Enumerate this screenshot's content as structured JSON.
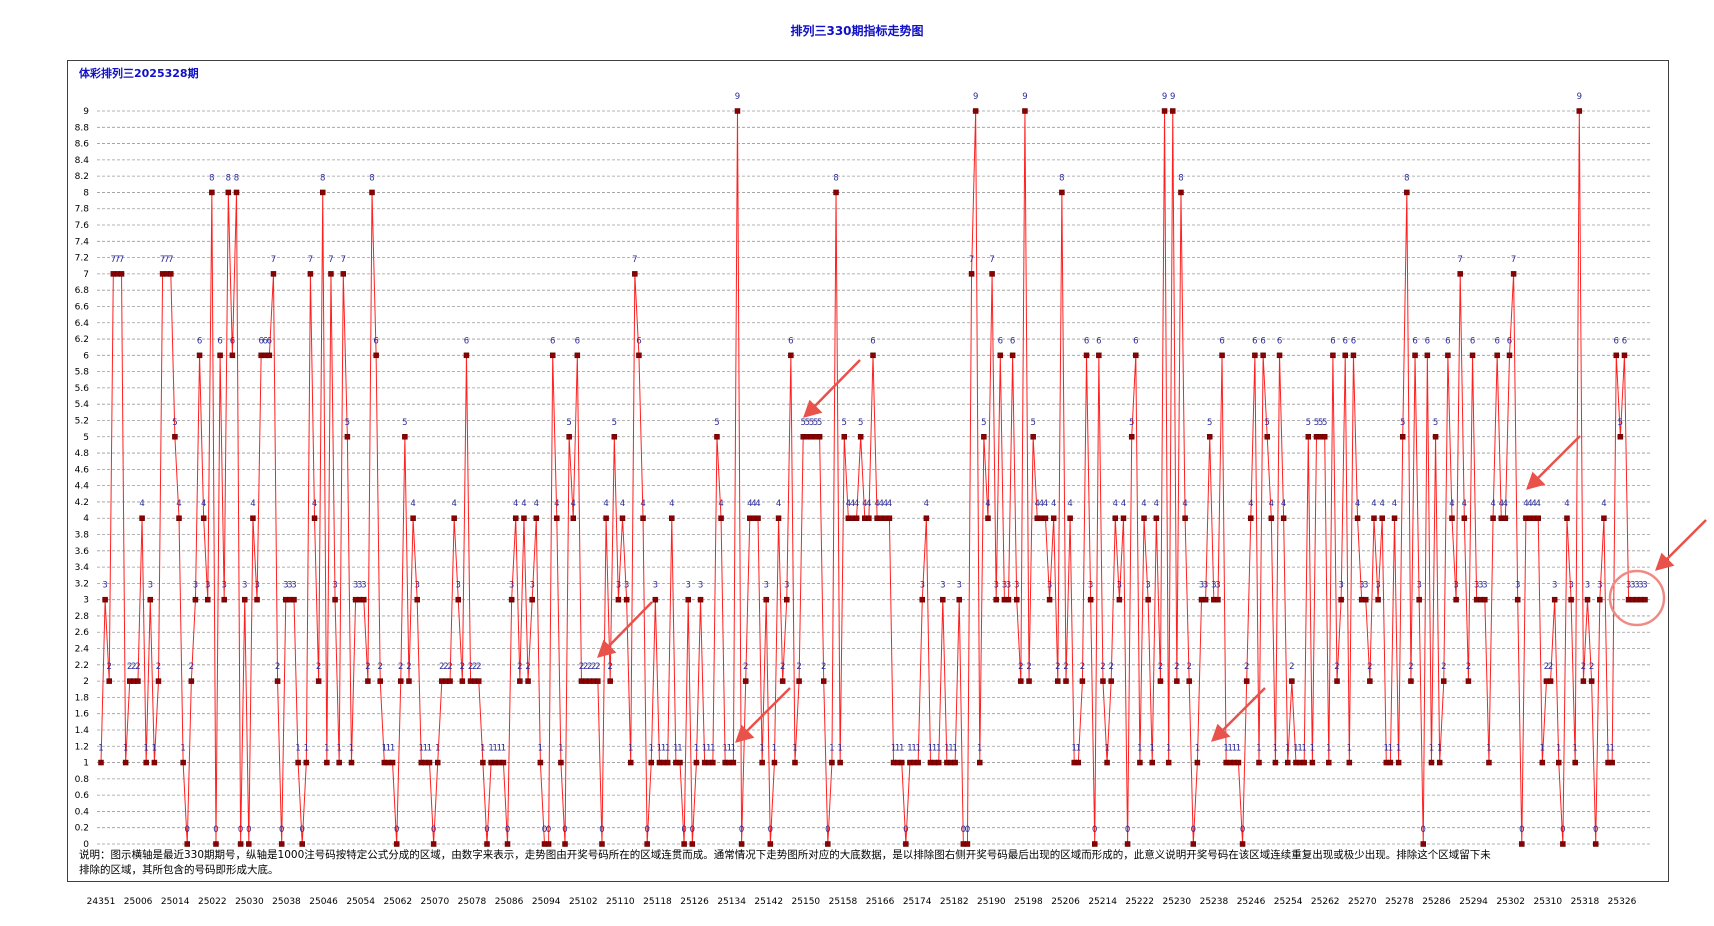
{
  "page_title": "排列三330期指标走势图",
  "subtitle": "体彩排列三2025328期",
  "note": "说明：图示横轴是最近330期期号，纵轴是1000注号码按特定公式分成的区域，由数字来表示，走势图由开奖号码所在的区域连贯而成。通常情况下走势图所对应的大底数据，是以排除图右侧开奖号码最后出现的区域而形成的，此意义说明开奖号码在该区域连续重复出现或极少出现。排除这个区域留下未排除的区域，其所包含的号码即形成大底。",
  "colors": {
    "line": "#ff2020",
    "marker": "#8b0000",
    "label": "#2b2b9a",
    "title": "#1010c8",
    "arrow": "#e8524a"
  },
  "chart_data": {
    "type": "line",
    "ylim": [
      0,
      9
    ],
    "yticks": [
      "0",
      "0.2",
      "0.4",
      "0.6",
      "0.8",
      "1",
      "1.2",
      "1.4",
      "1.6",
      "1.8",
      "2",
      "2.2",
      "2.4",
      "2.6",
      "2.8",
      "3",
      "3.2",
      "3.4",
      "3.6",
      "3.8",
      "4",
      "4.2",
      "4.4",
      "4.6",
      "4.8",
      "5",
      "5.2",
      "5.4",
      "5.6",
      "5.8",
      "6",
      "6.2",
      "6.4",
      "6.6",
      "6.8",
      "7",
      "7.2",
      "7.4",
      "7.6",
      "7.8",
      "8",
      "8.2",
      "8.4",
      "8.6",
      "8.8",
      "9"
    ],
    "xticks": [
      "24351",
      "25006",
      "25014",
      "25022",
      "25030",
      "25038",
      "25046",
      "25054",
      "25062",
      "25070",
      "25078",
      "25086",
      "25094",
      "25102",
      "25110",
      "25118",
      "25126",
      "25134",
      "25142",
      "25150",
      "25158",
      "25166",
      "25174",
      "25182",
      "25190",
      "25198",
      "25206",
      "25214",
      "25222",
      "25230",
      "25238",
      "25246",
      "25254",
      "25262",
      "25270",
      "25278",
      "25286",
      "25294",
      "25302",
      "25310",
      "25318",
      "25326"
    ],
    "grid": true,
    "values": [
      1,
      3,
      2,
      7,
      7,
      7,
      1,
      2,
      2,
      2,
      4,
      1,
      3,
      1,
      2,
      7,
      7,
      7,
      5,
      4,
      1,
      0,
      2,
      3,
      6,
      4,
      3,
      8,
      0,
      6,
      3,
      8,
      6,
      8,
      0,
      3,
      0,
      4,
      3,
      6,
      6,
      6,
      7,
      2,
      0,
      3,
      3,
      3,
      1,
      0,
      1,
      7,
      4,
      2,
      8,
      1,
      7,
      3,
      1,
      7,
      5,
      1,
      3,
      3,
      3,
      2,
      8,
      6,
      2,
      1,
      1,
      1,
      0,
      2,
      5,
      2,
      4,
      3,
      1,
      1,
      1,
      0,
      1,
      2,
      2,
      2,
      4,
      3,
      2,
      6,
      2,
      2,
      2,
      1,
      0,
      1,
      1,
      1,
      1,
      0,
      3,
      4,
      2,
      4,
      2,
      3,
      4,
      1,
      0,
      0,
      6,
      4,
      1,
      0,
      5,
      4,
      6,
      2,
      2,
      2,
      2,
      2,
      0,
      4,
      2,
      5,
      3,
      4,
      3,
      1,
      7,
      6,
      4,
      0,
      1,
      3,
      1,
      1,
      1,
      4,
      1,
      1,
      0,
      3,
      0,
      1,
      3,
      1,
      1,
      1,
      5,
      4,
      1,
      1,
      1,
      9,
      0,
      2,
      4,
      4,
      4,
      1,
      3,
      0,
      1,
      4,
      2,
      3,
      6,
      1,
      2,
      5,
      5,
      5,
      5,
      5,
      2,
      0,
      1,
      8,
      1,
      5,
      4,
      4,
      4,
      5,
      4,
      4,
      6,
      4,
      4,
      4,
      4,
      1,
      1,
      1,
      0,
      1,
      1,
      1,
      3,
      4,
      1,
      1,
      1,
      3,
      1,
      1,
      1,
      3,
      0,
      0,
      7,
      9,
      1,
      5,
      4,
      7,
      3,
      6,
      3,
      3,
      6,
      3,
      2,
      9,
      2,
      5,
      4,
      4,
      4,
      3,
      4,
      2,
      8,
      2,
      4,
      1,
      1,
      2,
      6,
      3,
      0,
      6,
      2,
      1,
      2,
      4,
      3,
      4,
      0,
      5,
      6,
      1,
      4,
      3,
      1,
      4,
      2,
      9,
      1,
      9,
      2,
      8,
      4,
      2,
      0,
      1,
      3,
      3,
      5,
      3,
      3,
      6,
      1,
      1,
      1,
      1,
      0,
      2,
      4,
      6,
      1,
      6,
      5,
      4,
      1,
      6,
      4,
      1,
      2,
      1,
      1,
      1,
      5,
      1,
      5,
      5,
      5,
      1,
      6,
      2,
      3,
      6,
      1,
      6,
      4,
      3,
      3,
      2,
      4,
      3,
      4,
      1,
      1,
      4,
      1,
      5,
      8,
      2,
      6,
      3,
      0,
      6,
      1,
      5,
      1,
      2,
      6,
      4,
      3,
      7,
      4,
      2,
      6,
      3,
      3,
      3,
      1,
      4,
      6,
      4,
      4,
      6,
      7,
      3,
      0,
      4,
      4,
      4,
      4,
      1,
      2,
      2,
      3,
      1,
      0,
      4,
      3,
      1,
      9,
      2,
      3,
      2,
      0,
      3,
      4,
      1,
      1,
      6,
      5,
      6,
      3,
      3,
      3,
      3,
      3
    ]
  }
}
